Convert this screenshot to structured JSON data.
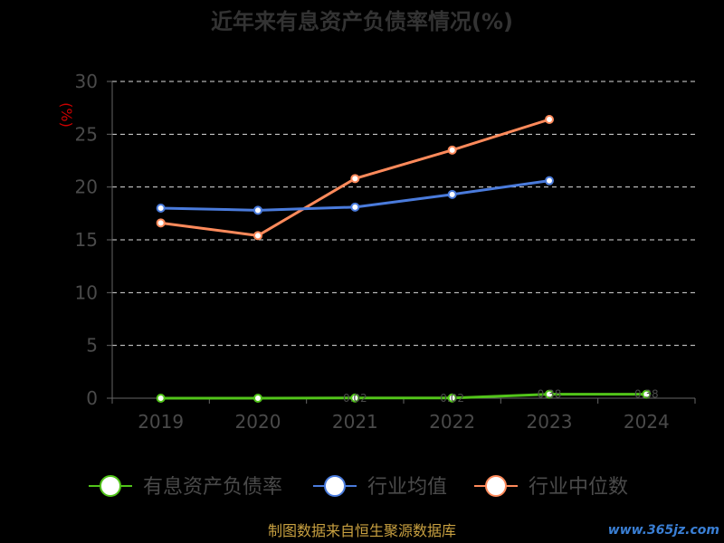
{
  "chart_data": {
    "type": "line",
    "title": "近年来有息资产负债率情况(%)",
    "ylabel": "(%)",
    "xlabel": "",
    "categories": [
      "2019",
      "2020",
      "2021",
      "2022",
      "2023",
      "2024"
    ],
    "ylim": [
      0,
      30
    ],
    "yticks": [
      0,
      5,
      10,
      15,
      20,
      25,
      30
    ],
    "grid": true,
    "legend_position": "bottom",
    "series": [
      {
        "name": "有息资产负债率",
        "color": "#52c41a",
        "values": [
          0.0,
          0.0,
          0.02,
          0.02,
          0.38,
          0.38
        ],
        "labels": [
          "",
          "",
          "0.02",
          "0.02",
          "0.38",
          "0.38"
        ]
      },
      {
        "name": "行业均值",
        "color": "#4a7bdc",
        "values": [
          18.0,
          17.8,
          18.1,
          19.3,
          20.6,
          null
        ],
        "labels": []
      },
      {
        "name": "行业中位数",
        "color": "#ff8a5b",
        "values": [
          16.6,
          15.4,
          20.8,
          23.5,
          26.4,
          null
        ],
        "labels": []
      }
    ]
  },
  "footer": {
    "source": "制图数据来自恒生聚源数据库",
    "watermark": "www.365jz.com"
  }
}
